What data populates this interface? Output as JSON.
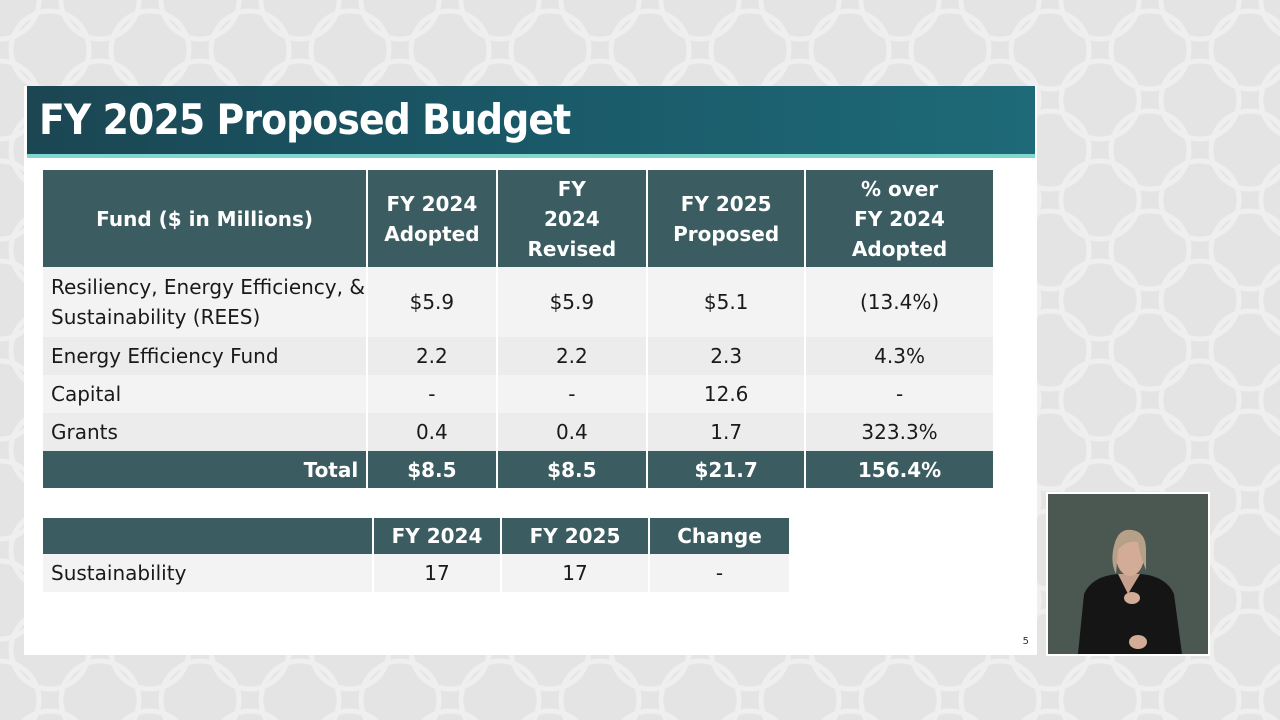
{
  "slide": {
    "title": "FY 2025 Proposed Budget",
    "page_number": "5",
    "colors": {
      "title_bar": "#1b4652",
      "title_accent": "#7fd8cf",
      "table_header": "#3b5d61"
    }
  },
  "budget_table": {
    "headers": [
      "Fund ($ in Millions)",
      "FY 2024 Adopted",
      "FY 2024 Revised",
      "FY 2025 Proposed",
      "% over FY 2024 Adopted"
    ],
    "rows": [
      [
        "Resiliency, Energy Efficiency, & Sustainability (REES)",
        "$5.9",
        "$5.9",
        "$5.1",
        "(13.4%)"
      ],
      [
        "Energy Efficiency Fund",
        "2.2",
        "2.2",
        "2.3",
        "4.3%"
      ],
      [
        "Capital",
        "-",
        "-",
        "12.6",
        "-"
      ],
      [
        "Grants",
        "0.4",
        "0.4",
        "1.7",
        "323.3%"
      ]
    ],
    "total": [
      "Total",
      "$8.5",
      "$8.5",
      "$21.7",
      "156.4%"
    ]
  },
  "staffing_table": {
    "headers": [
      "",
      "FY 2024",
      "FY 2025",
      "Change"
    ],
    "rows": [
      [
        "Sustainability",
        "17",
        "17",
        "-"
      ]
    ]
  },
  "video_overlay": {
    "icon": "sign-language-interpreter-video"
  }
}
